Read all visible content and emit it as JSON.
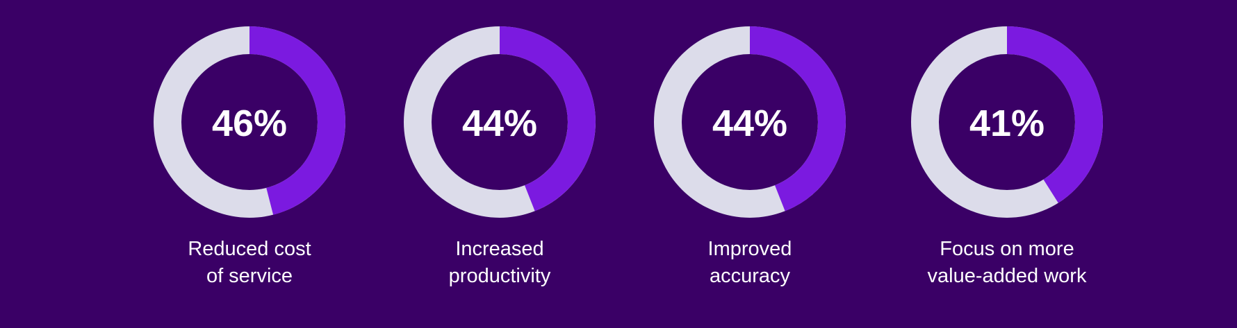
{
  "colors": {
    "background": "#3a0066",
    "highlight": "#7b1ae0",
    "remainder": "#dcdcea",
    "text": "#ffffff"
  },
  "chart_data": [
    {
      "type": "pie",
      "style": "donut",
      "value": 46,
      "max": 100,
      "label": "46%",
      "caption_lines": [
        "Reduced cost",
        "of service"
      ]
    },
    {
      "type": "pie",
      "style": "donut",
      "value": 44,
      "max": 100,
      "label": "44%",
      "caption_lines": [
        "Increased",
        "productivity"
      ]
    },
    {
      "type": "pie",
      "style": "donut",
      "value": 44,
      "max": 100,
      "label": "44%",
      "caption_lines": [
        "Improved",
        "accuracy"
      ]
    },
    {
      "type": "pie",
      "style": "donut",
      "value": 41,
      "max": 100,
      "label": "41%",
      "caption_lines": [
        "Focus on more",
        "value-added work"
      ]
    }
  ]
}
